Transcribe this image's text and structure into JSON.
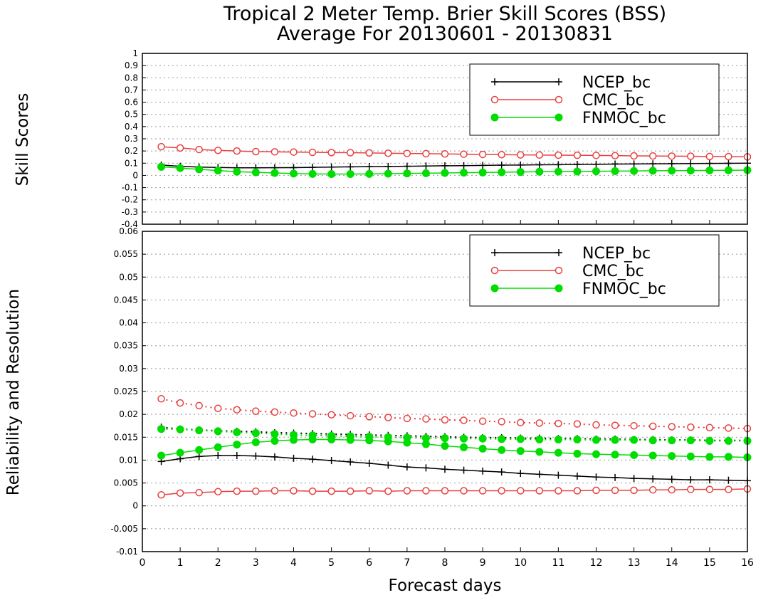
{
  "title_line1": "Tropical 2 Meter Temp. Brier Skill Scores (BSS)",
  "title_line2": "Average For 20130601 - 20130831",
  "xlabel": "Forecast days",
  "colors": {
    "ncep": "#000000",
    "cmc": "#e84040",
    "fnmoc": "#00dd00",
    "grid": "#999999"
  },
  "chart_data": [
    {
      "type": "line",
      "ylabel": "Skill Scores",
      "xlim": [
        0,
        16
      ],
      "ylim": [
        -0.4,
        1
      ],
      "x_ticks": [
        "0",
        "1",
        "2",
        "3",
        "4",
        "5",
        "6",
        "7",
        "8",
        "9",
        "10",
        "11",
        "12",
        "13",
        "14",
        "15",
        "16"
      ],
      "y_ticks": [
        "-0.4",
        "-0.3",
        "-0.2",
        "-0.1",
        "0",
        "0.1",
        "0.2",
        "0.3",
        "0.4",
        "0.5",
        "0.6",
        "0.7",
        "0.8",
        "0.9",
        "1"
      ],
      "legend_position": "top-right",
      "x": [
        0.5,
        1,
        1.5,
        2,
        2.5,
        3,
        3.5,
        4,
        4.5,
        5,
        5.5,
        6,
        6.5,
        7,
        7.5,
        8,
        8.5,
        9,
        9.5,
        10,
        10.5,
        11,
        11.5,
        12,
        12.5,
        13,
        13.5,
        14,
        14.5,
        15,
        15.5,
        16
      ],
      "series": [
        {
          "name": "NCEP_bc",
          "key": "ncep",
          "marker": "plus",
          "style": "solid",
          "values": [
            0.085,
            0.075,
            0.068,
            0.065,
            0.062,
            0.062,
            0.063,
            0.064,
            0.066,
            0.068,
            0.07,
            0.072,
            0.073,
            0.075,
            0.077,
            0.079,
            0.08,
            0.082,
            0.084,
            0.085,
            0.087,
            0.088,
            0.09,
            0.091,
            0.093,
            0.094,
            0.095,
            0.096,
            0.097,
            0.098,
            0.099,
            0.1
          ]
        },
        {
          "name": "CMC_bc",
          "key": "cmc",
          "marker": "open-circle",
          "style": "solid",
          "values": [
            0.235,
            0.225,
            0.212,
            0.205,
            0.2,
            0.195,
            0.193,
            0.191,
            0.189,
            0.187,
            0.186,
            0.184,
            0.182,
            0.18,
            0.178,
            0.176,
            0.174,
            0.172,
            0.17,
            0.168,
            0.167,
            0.166,
            0.165,
            0.164,
            0.162,
            0.16,
            0.159,
            0.158,
            0.157,
            0.155,
            0.154,
            0.152
          ]
        },
        {
          "name": "FNMOC_bc",
          "key": "fnmoc",
          "marker": "filled-circle",
          "style": "solid",
          "values": [
            0.07,
            0.06,
            0.05,
            0.04,
            0.03,
            0.025,
            0.02,
            0.015,
            0.012,
            0.011,
            0.011,
            0.012,
            0.014,
            0.016,
            0.018,
            0.02,
            0.022,
            0.024,
            0.026,
            0.028,
            0.03,
            0.031,
            0.032,
            0.034,
            0.035,
            0.036,
            0.038,
            0.039,
            0.04,
            0.041,
            0.042,
            0.043
          ]
        }
      ]
    },
    {
      "type": "line",
      "ylabel": "Reliability and Resolution",
      "xlim": [
        0,
        16
      ],
      "ylim": [
        -0.01,
        0.06
      ],
      "x_ticks": [
        "0",
        "1",
        "2",
        "3",
        "4",
        "5",
        "6",
        "7",
        "8",
        "9",
        "10",
        "11",
        "12",
        "13",
        "14",
        "15",
        "16"
      ],
      "y_ticks": [
        "-0.01",
        "-0.005",
        "0",
        "0.005",
        "0.01",
        "0.015",
        "0.02",
        "0.025",
        "0.03",
        "0.035",
        "0.04",
        "0.045",
        "0.05",
        "0.055",
        "0.06"
      ],
      "legend_position": "top-right",
      "x": [
        0.5,
        1,
        1.5,
        2,
        2.5,
        3,
        3.5,
        4,
        4.5,
        5,
        5.5,
        6,
        6.5,
        7,
        7.5,
        8,
        8.5,
        9,
        9.5,
        10,
        10.5,
        11,
        11.5,
        12,
        12.5,
        13,
        13.5,
        14,
        14.5,
        15,
        15.5,
        16
      ],
      "series": [
        {
          "name": "NCEP_bc",
          "key": "ncep",
          "marker": "plus",
          "style": "solid",
          "values": [
            0.0097,
            0.0103,
            0.0108,
            0.011,
            0.011,
            0.0109,
            0.0107,
            0.0104,
            0.0102,
            0.0099,
            0.0096,
            0.0093,
            0.0089,
            0.0085,
            0.0083,
            0.008,
            0.0078,
            0.0076,
            0.0074,
            0.0071,
            0.0069,
            0.0067,
            0.0065,
            0.0063,
            0.0062,
            0.006,
            0.0059,
            0.0058,
            0.0057,
            0.0057,
            0.0056,
            0.0055
          ]
        },
        {
          "name": "NCEP_bc",
          "key": "ncep",
          "marker": "plus",
          "style": "dotted",
          "legend": false,
          "values": [
            0.0172,
            0.0168,
            0.0166,
            0.0164,
            0.0163,
            0.0162,
            0.016,
            0.0159,
            0.0158,
            0.0157,
            0.0156,
            0.0155,
            0.0154,
            0.0153,
            0.0152,
            0.0151,
            0.015,
            0.0149,
            0.0149,
            0.0148,
            0.0148,
            0.0147,
            0.0147,
            0.0146,
            0.0146,
            0.0145,
            0.0145,
            0.0144,
            0.0144,
            0.0143,
            0.0143,
            0.0143
          ]
        },
        {
          "name": "CMC_bc",
          "key": "cmc",
          "marker": "open-circle",
          "style": "solid",
          "values": [
            0.0024,
            0.0028,
            0.0029,
            0.0031,
            0.0032,
            0.0032,
            0.0033,
            0.0033,
            0.0032,
            0.0032,
            0.0032,
            0.0033,
            0.0032,
            0.0033,
            0.0033,
            0.0033,
            0.0033,
            0.0033,
            0.0033,
            0.0033,
            0.0033,
            0.0033,
            0.0033,
            0.0034,
            0.0034,
            0.0034,
            0.0035,
            0.0035,
            0.0036,
            0.0036,
            0.0036,
            0.0037
          ]
        },
        {
          "name": "CMC_bc",
          "key": "cmc",
          "marker": "open-circle",
          "style": "dotted",
          "legend": false,
          "values": [
            0.0234,
            0.0225,
            0.0219,
            0.0213,
            0.021,
            0.0207,
            0.0205,
            0.0203,
            0.0201,
            0.0199,
            0.0197,
            0.0195,
            0.0193,
            0.0191,
            0.019,
            0.0188,
            0.0187,
            0.0185,
            0.0184,
            0.0182,
            0.0181,
            0.018,
            0.0179,
            0.0177,
            0.0176,
            0.0175,
            0.0174,
            0.0173,
            0.0172,
            0.0171,
            0.017,
            0.0169
          ]
        },
        {
          "name": "FNMOC_bc",
          "key": "fnmoc",
          "marker": "filled-circle",
          "style": "solid",
          "values": [
            0.011,
            0.0116,
            0.0122,
            0.0128,
            0.0134,
            0.0139,
            0.0142,
            0.0144,
            0.0145,
            0.0145,
            0.0144,
            0.0143,
            0.0141,
            0.0138,
            0.0135,
            0.0131,
            0.0128,
            0.0125,
            0.0122,
            0.012,
            0.0118,
            0.0116,
            0.0114,
            0.0113,
            0.0112,
            0.0111,
            0.011,
            0.0109,
            0.0108,
            0.0107,
            0.0107,
            0.0106
          ]
        },
        {
          "name": "FNMOC_bc",
          "key": "fnmoc",
          "marker": "filled-circle",
          "style": "dotted",
          "legend": false,
          "values": [
            0.0168,
            0.0167,
            0.0165,
            0.0163,
            0.0161,
            0.0159,
            0.0157,
            0.0155,
            0.0154,
            0.0153,
            0.0152,
            0.0151,
            0.015,
            0.0149,
            0.0148,
            0.0148,
            0.0147,
            0.0147,
            0.0146,
            0.0146,
            0.0145,
            0.0145,
            0.0145,
            0.0144,
            0.0144,
            0.0144,
            0.0143,
            0.0143,
            0.0143,
            0.0142,
            0.0142,
            0.0142
          ]
        }
      ]
    }
  ]
}
